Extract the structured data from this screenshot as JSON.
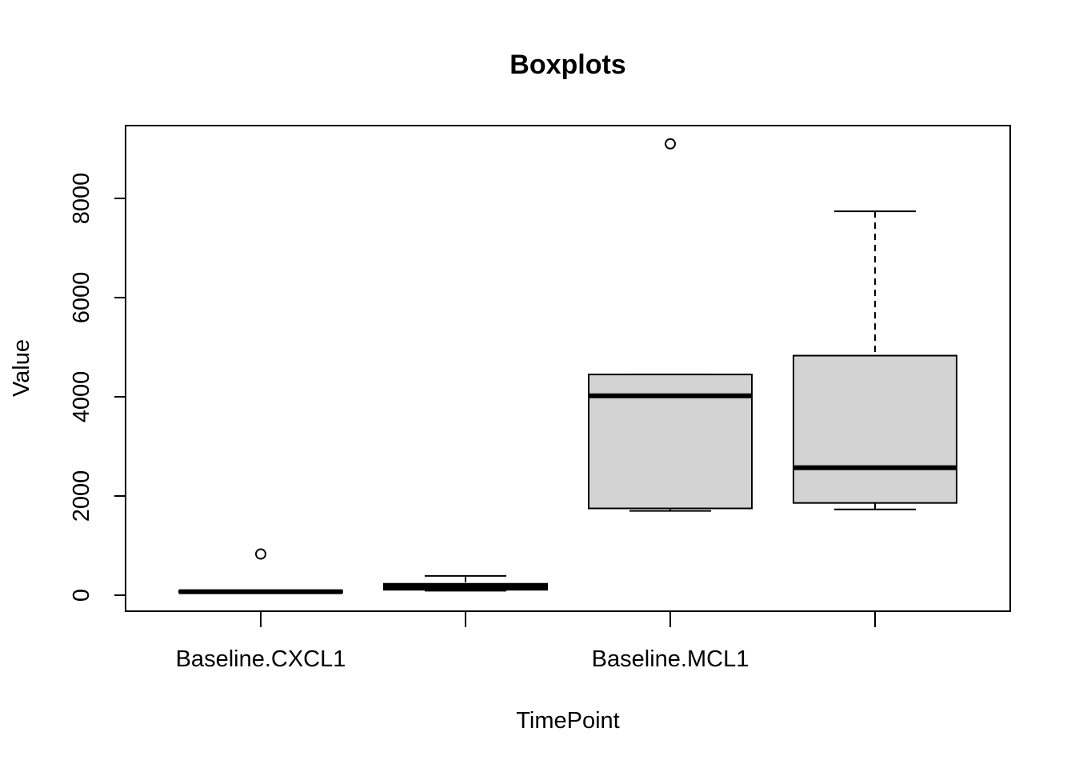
{
  "chart_data": {
    "type": "boxplot",
    "title": "Boxplots",
    "xlabel": "TimePoint",
    "ylabel": "Value",
    "ylim": [
      -300,
      9500
    ],
    "y_ticks": [
      0,
      2000,
      4000,
      6000,
      8000
    ],
    "x_tick_labels": [
      "Baseline.CXCL1",
      "",
      "Baseline.MCL1",
      ""
    ],
    "grid": false,
    "box_fill": "#d3d3d3",
    "line_color": "#000000",
    "boxes": [
      {
        "category": "Baseline.CXCL1",
        "whisker_low": 55,
        "q1": 55,
        "median": 70,
        "q3": 90,
        "whisker_high": 95,
        "outliers": [
          830
        ]
      },
      {
        "category": "",
        "whisker_low": 90,
        "q1": 110,
        "median": 170,
        "q3": 230,
        "whisker_high": 390,
        "outliers": []
      },
      {
        "category": "Baseline.MCL1",
        "whisker_low": 1700,
        "q1": 1750,
        "median": 4020,
        "q3": 4450,
        "whisker_high": 4450,
        "outliers": [
          9100
        ]
      },
      {
        "category": "",
        "whisker_low": 1730,
        "q1": 1860,
        "median": 2570,
        "q3": 4830,
        "whisker_high": 7740,
        "outliers": []
      }
    ]
  }
}
